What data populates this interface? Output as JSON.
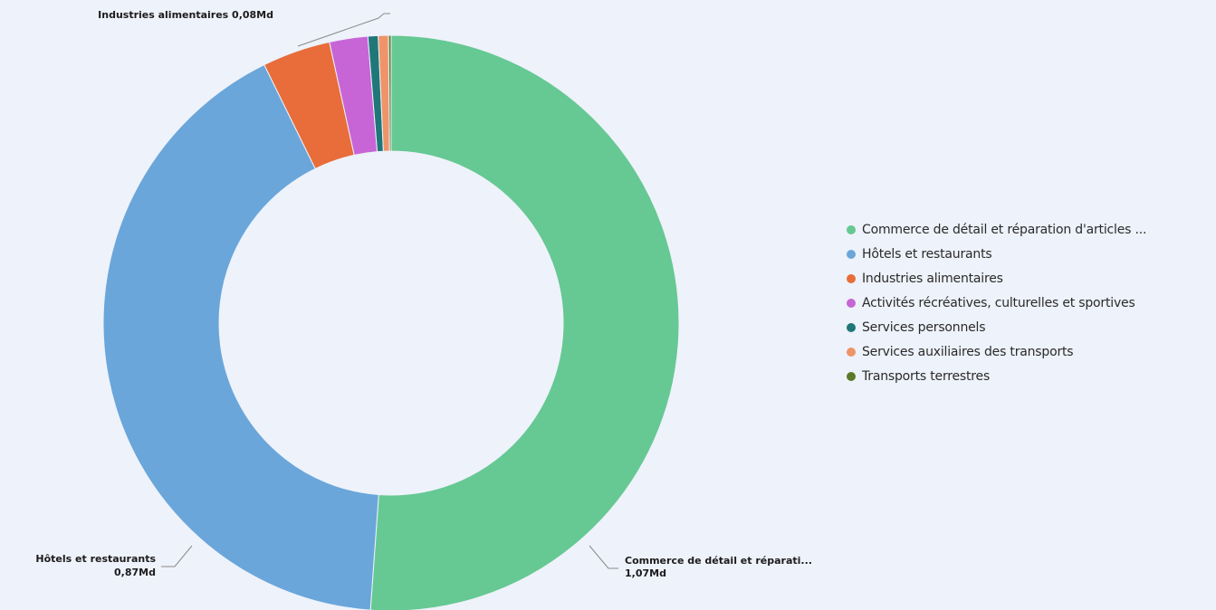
{
  "chart_data": {
    "type": "pie",
    "donut": true,
    "legend_position": "right",
    "series": [
      {
        "name": "Commerce de détail et réparation d'articles ...",
        "value": 1.07,
        "color": "#66c893"
      },
      {
        "name": "Hôtels et restaurants",
        "value": 0.87,
        "color": "#6aa6da"
      },
      {
        "name": "Industries alimentaires",
        "value": 0.08,
        "color": "#e86d3a"
      },
      {
        "name": "Activités récréatives, culturelles et sportives",
        "value": 0.045,
        "color": "#c765d6"
      },
      {
        "name": "Services personnels",
        "value": 0.012,
        "color": "#1f7778"
      },
      {
        "name": "Services auxiliaires des transports",
        "value": 0.012,
        "color": "#ef9468"
      },
      {
        "name": "Transports terrestres",
        "value": 0.003,
        "color": "#5b7a2a"
      }
    ],
    "data_labels": {
      "commerce": {
        "line1": "Commerce de détail et réparati...",
        "line2": "1,07Md"
      },
      "hotels": {
        "line1": "Hôtels et restaurants",
        "line2": "0,87Md"
      },
      "industries": {
        "line1": "Industries alimentaires 0,08Md"
      }
    }
  }
}
